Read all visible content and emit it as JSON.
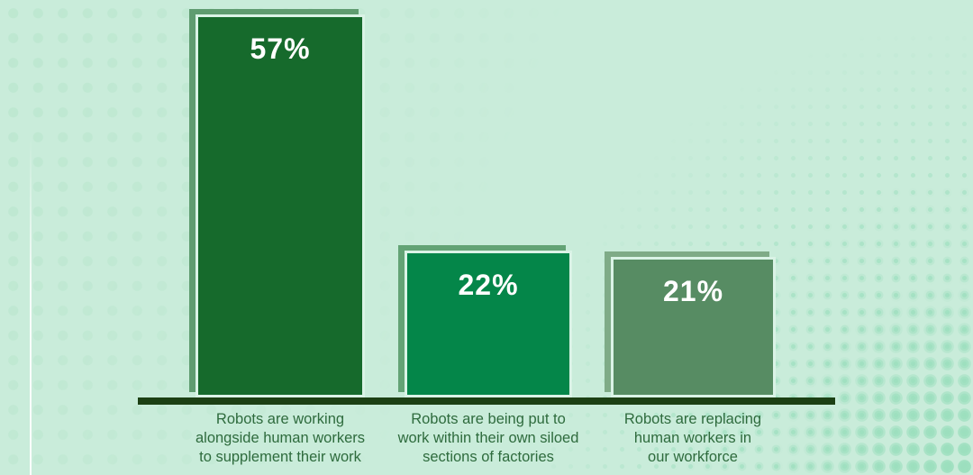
{
  "chart_data": {
    "type": "bar",
    "title": "",
    "xlabel": "",
    "ylabel": "",
    "ylim": [
      0,
      60
    ],
    "grid": false,
    "legend": false,
    "axis_style": "baseline-only",
    "unit": "%",
    "categories": [
      "Robots are working alongside human workers to supplement their work",
      "Robots are being put to work within their own siloed sections of factories",
      "Robots are replacing human workers in our workforce"
    ],
    "category_lines": [
      [
        "Robots are working",
        "alongside human workers",
        "to supplement their work"
      ],
      [
        "Robots are being put to",
        "work within their own siloed",
        "sections of factories"
      ],
      [
        "Robots are replacing",
        "human workers in",
        "our workforce"
      ]
    ],
    "values": [
      57,
      22,
      21
    ],
    "value_labels": [
      "57%",
      "22%",
      "21%"
    ]
  },
  "colors": {
    "canvas-bg": "#c9ecda",
    "dots-left": "#bde7d0",
    "dots-right": "#9cdfbe",
    "bar1-fill": "#166a2c",
    "bar1-shadow": "#5f9c70",
    "bar2-fill": "#048649",
    "bar2-shadow": "#63a375",
    "bar3-fill": "#578c63",
    "bar3-shadow": "#7fab87",
    "bar-stroke": "#daf3e6",
    "axis": "#1c4014",
    "value-text": "#ffffff",
    "label-text": "#2e6b3d"
  }
}
